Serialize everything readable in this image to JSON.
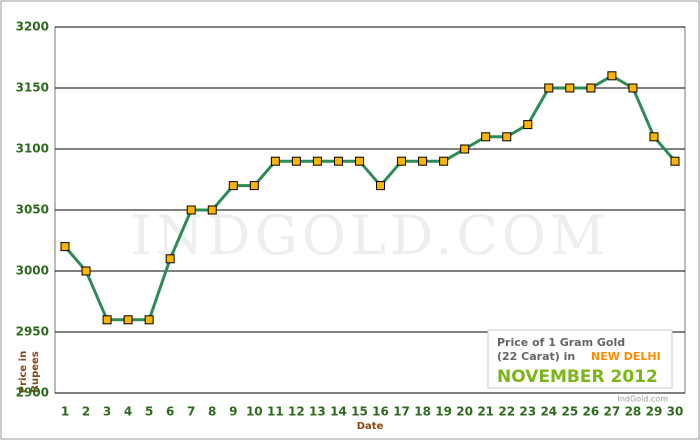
{
  "chart_data": {
    "type": "line",
    "x_label": "Date",
    "y_label": [
      "Price in",
      "Rupees"
    ],
    "categories": [
      "1",
      "2",
      "3",
      "4",
      "5",
      "6",
      "7",
      "8",
      "9",
      "10",
      "11",
      "12",
      "13",
      "14",
      "15",
      "16",
      "17",
      "18",
      "19",
      "20",
      "21",
      "22",
      "23",
      "24",
      "25",
      "26",
      "27",
      "28",
      "29",
      "30"
    ],
    "series": [
      {
        "color": "#2e8b57",
        "marker_color": "#ffb400",
        "values": [
          3020,
          3000,
          2960,
          2960,
          2960,
          3010,
          3050,
          3050,
          3070,
          3070,
          3090,
          3090,
          3090,
          3090,
          3090,
          3070,
          3090,
          3090,
          3090,
          3100,
          3110,
          3110,
          3120,
          3150,
          3150,
          3150,
          3160,
          3150,
          3110,
          3090
        ]
      }
    ],
    "ylim": [
      2900,
      3200
    ],
    "yticks": [
      2900,
      2950,
      3000,
      3050,
      3100,
      3150,
      3200
    ],
    "grid": true,
    "watermark": "IndGold.com",
    "caption": {
      "line1": "Price of 1 Gram Gold",
      "line2": "(22 Carat) in",
      "city": "NEW DELHI",
      "month": "NOVEMBER 2012",
      "site": "IndGold.com"
    }
  }
}
